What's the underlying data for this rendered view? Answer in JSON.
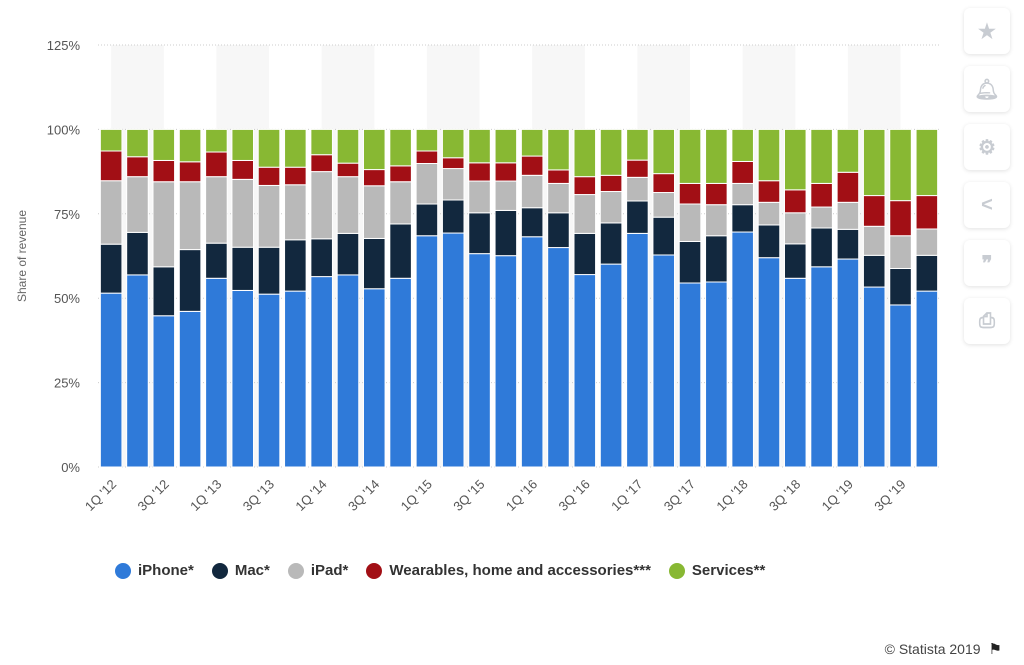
{
  "chart_data": {
    "type": "bar",
    "stacked": true,
    "ylabel": "Share of revenue",
    "ylim": [
      0,
      125
    ],
    "yticks": [
      "0%",
      "25%",
      "50%",
      "75%",
      "100%",
      "125%"
    ],
    "grid": true,
    "legend_position": "bottom",
    "categories": [
      "1Q '12",
      "2Q '12",
      "3Q '12",
      "4Q '12",
      "1Q '13",
      "2Q '13",
      "3Q '13",
      "4Q '13",
      "1Q '14",
      "2Q '14",
      "3Q '14",
      "4Q '14",
      "1Q '15",
      "2Q '15",
      "3Q '15",
      "4Q '15",
      "1Q '16",
      "2Q '16",
      "3Q '16",
      "4Q '16",
      "1Q '17",
      "2Q '17",
      "3Q '17",
      "4Q '17",
      "1Q '18",
      "2Q '18",
      "3Q '18",
      "4Q '18",
      "1Q '19",
      "2Q '19",
      "3Q '19",
      "4Q '19"
    ],
    "xtick_labels": [
      "1Q '12",
      "3Q '12",
      "1Q '13",
      "3Q '13",
      "1Q '14",
      "3Q '14",
      "1Q '15",
      "3Q '15",
      "1Q '16",
      "3Q '16",
      "1Q '17",
      "3Q '17",
      "1Q '18",
      "3Q '18",
      "1Q '19",
      "3Q '19"
    ],
    "series": [
      {
        "name": "iPhone*",
        "color": "#2f7ad9",
        "values": [
          51.5,
          56.9,
          44.8,
          46.1,
          55.9,
          52.3,
          51.2,
          52.1,
          56.4,
          56.9,
          52.8,
          55.9,
          68.5,
          69.3,
          63.2,
          62.6,
          68.2,
          65.0,
          57.0,
          60.1,
          69.2,
          62.8,
          54.5,
          54.8,
          69.6,
          62.0,
          55.9,
          59.3,
          61.6,
          53.3,
          48.0,
          52.1
        ]
      },
      {
        "name": "Mac*",
        "color": "#12283e",
        "values": [
          14.5,
          12.6,
          14.5,
          18.3,
          10.4,
          12.8,
          13.9,
          15.2,
          11.2,
          12.3,
          14.9,
          16.1,
          9.4,
          9.8,
          12.1,
          13.4,
          8.6,
          10.3,
          12.2,
          12.2,
          9.6,
          11.2,
          12.3,
          13.7,
          8.1,
          9.7,
          10.2,
          11.5,
          8.8,
          9.4,
          10.8,
          10.6
        ]
      },
      {
        "name": "iPad*",
        "color": "#b9b9b9",
        "values": [
          18.8,
          16.5,
          25.2,
          20.1,
          19.7,
          20.1,
          18.3,
          16.3,
          19.9,
          16.8,
          15.6,
          12.5,
          12.0,
          9.3,
          9.4,
          8.7,
          9.6,
          8.7,
          11.5,
          9.3,
          7.0,
          7.3,
          11.1,
          9.2,
          6.3,
          6.7,
          9.2,
          6.2,
          8.0,
          8.6,
          9.7,
          7.8
        ]
      },
      {
        "name": "Wearables, home and accessories***",
        "color": "#a20f15",
        "values": [
          8.8,
          5.9,
          6.3,
          5.9,
          7.3,
          5.6,
          5.4,
          5.2,
          5.0,
          4.0,
          4.8,
          4.7,
          3.7,
          3.2,
          5.4,
          5.4,
          5.7,
          4.0,
          5.3,
          4.8,
          5.1,
          5.6,
          6.1,
          6.3,
          6.5,
          6.4,
          6.8,
          7.0,
          8.9,
          9.1,
          10.4,
          9.9
        ]
      },
      {
        "name": "Services**",
        "color": "#88b833",
        "values": [
          6.4,
          8.1,
          9.2,
          9.6,
          6.7,
          9.2,
          11.2,
          11.2,
          7.5,
          10.0,
          11.9,
          10.8,
          6.4,
          8.4,
          9.9,
          9.9,
          7.9,
          12.0,
          14.0,
          13.6,
          9.1,
          13.1,
          16.0,
          16.0,
          9.5,
          15.2,
          17.9,
          16.0,
          12.7,
          19.6,
          21.1,
          19.6
        ]
      }
    ]
  },
  "footer": {
    "copyright": "© Statista 2019"
  },
  "sidebar": {
    "icons": [
      "star-icon",
      "bell-icon",
      "gear-icon",
      "share-icon",
      "quote-icon",
      "print-icon"
    ]
  }
}
